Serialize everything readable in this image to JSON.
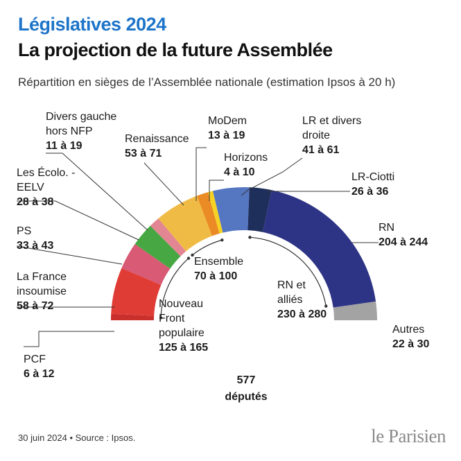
{
  "header": {
    "kicker": "Législatives 2024",
    "title": "La projection de la future Assemblée",
    "subtitle": "Répartition en sièges de l’Assemblée nationale (estimation Ipsos à 20 h)"
  },
  "footer": {
    "source": "30 juin 2024 • Source : Ipsos.",
    "brand": "le Parisien"
  },
  "chart_data": {
    "type": "pie",
    "total": {
      "value": "577",
      "label": "députés"
    },
    "parties": [
      {
        "name": [
          "PCF"
        ],
        "range": "6 à 12",
        "low": 6,
        "high": 12,
        "color": "#c9302c"
      },
      {
        "name": [
          "La France",
          "insoumise"
        ],
        "range": "58 à 72",
        "low": 58,
        "high": 72,
        "color": "#e03c36"
      },
      {
        "name": [
          "PS"
        ],
        "range": "33 à 43",
        "low": 33,
        "high": 43,
        "color": "#d85a74"
      },
      {
        "name": [
          "Les Écolo. -",
          "EELV"
        ],
        "range": "28 à 38",
        "low": 28,
        "high": 38,
        "color": "#47a843"
      },
      {
        "name": [
          "Divers gauche",
          "hors NFP"
        ],
        "range": "11 à 19",
        "low": 11,
        "high": 19,
        "color": "#e38693"
      },
      {
        "name": [
          "Renaissance"
        ],
        "range": "53 à 71",
        "low": 53,
        "high": 71,
        "color": "#f0bb45"
      },
      {
        "name": [
          "MoDem"
        ],
        "range": "13 à 19",
        "low": 13,
        "high": 19,
        "color": "#ea8b25"
      },
      {
        "name": [
          "Horizons"
        ],
        "range": "4 à 10",
        "low": 4,
        "high": 10,
        "color": "#f6d224"
      },
      {
        "name": [
          "LR et divers",
          "droite"
        ],
        "range": "41 à 61",
        "low": 41,
        "high": 61,
        "color": "#5577c2"
      },
      {
        "name": [
          "LR-Ciotti"
        ],
        "range": "26 à 36",
        "low": 26,
        "high": 36,
        "color": "#1e2f5c"
      },
      {
        "name": [
          "RN"
        ],
        "range": "204 à 244",
        "low": 204,
        "high": 244,
        "color": "#2e3485"
      },
      {
        "name": [
          "Autres"
        ],
        "range": "22 à 30",
        "low": 22,
        "high": 30,
        "color": "#a3a3a3"
      }
    ],
    "groups": [
      {
        "name": [
          "Nouveau",
          "Front",
          "populaire"
        ],
        "range": "125 à 165",
        "low": 125,
        "high": 165
      },
      {
        "name": [
          "Ensemble"
        ],
        "range": "70 à 100",
        "low": 70,
        "high": 100
      },
      {
        "name": [
          "RN et",
          "alliés"
        ],
        "range": "230 à 280",
        "low": 230,
        "high": 280
      }
    ]
  }
}
